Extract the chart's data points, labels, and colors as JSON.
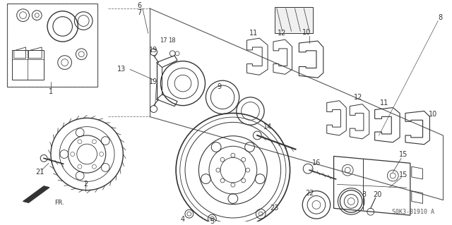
{
  "bg_color": "#ffffff",
  "line_color": "#333333",
  "diagram_code": "S0K3-B1910 A",
  "fig_w": 6.4,
  "fig_h": 3.19,
  "dpi": 100
}
